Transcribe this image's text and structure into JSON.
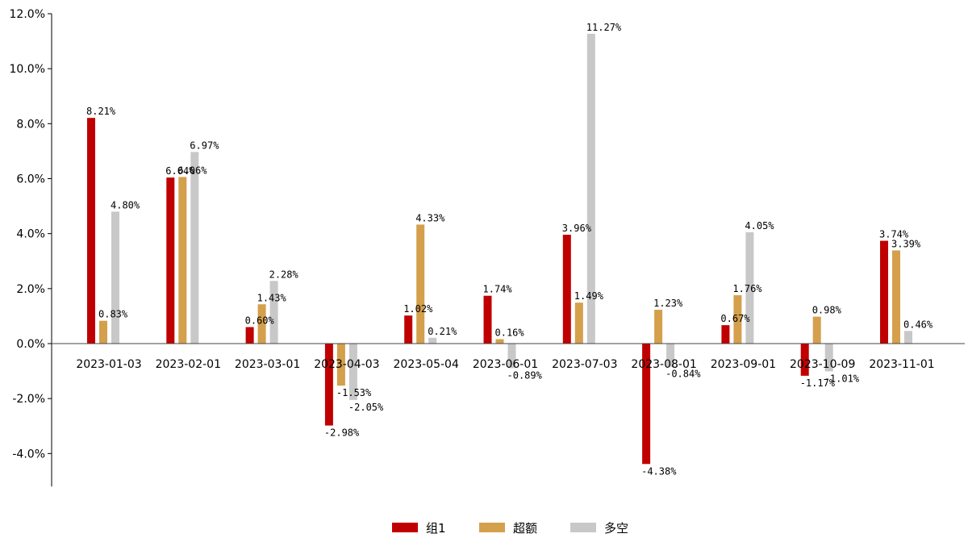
{
  "chart_data": {
    "type": "bar",
    "categories": [
      "2023-01-03",
      "2023-02-01",
      "2023-03-01",
      "2023-04-03",
      "2023-05-04",
      "2023-06-01",
      "2023-07-03",
      "2023-08-01",
      "2023-09-01",
      "2023-10-09",
      "2023-11-01"
    ],
    "series": [
      {
        "name": "组1",
        "color": "#c00000",
        "values": [
          8.21,
          6.04,
          0.6,
          -2.98,
          1.02,
          1.74,
          3.96,
          -4.38,
          0.67,
          -1.17,
          3.74
        ],
        "labels": [
          "8.21%",
          "6.04%",
          "0.60%",
          "-2.98%",
          "1.02%",
          "1.74%",
          "3.96%",
          "-4.38%",
          "0.67%",
          "-1.17%",
          "3.74%"
        ]
      },
      {
        "name": "超额",
        "color": "#d4a04c",
        "values": [
          0.83,
          6.06,
          1.43,
          -1.53,
          4.33,
          0.16,
          1.49,
          1.23,
          1.76,
          0.98,
          3.39
        ],
        "labels": [
          "0.83%",
          "6.06%",
          "1.43%",
          "-1.53%",
          "4.33%",
          "0.16%",
          "1.49%",
          "1.23%",
          "1.76%",
          "0.98%",
          "3.39%"
        ]
      },
      {
        "name": "多空",
        "color": "#c8c8c8",
        "values": [
          4.8,
          6.97,
          2.28,
          -2.05,
          0.21,
          -0.89,
          11.27,
          -0.84,
          4.05,
          -1.01,
          0.46
        ],
        "labels": [
          "4.80%",
          "6.97%",
          "2.28%",
          "-2.05%",
          "0.21%",
          "-0.89%",
          "11.27%",
          "-0.84%",
          "4.05%",
          "-1.01%",
          "0.46%"
        ]
      }
    ],
    "yticks": [
      -4,
      -2,
      0,
      2,
      4,
      6,
      8,
      10,
      12
    ],
    "ytick_labels": [
      "-4.0%",
      "-2.0%",
      "0.0%",
      "2.0%",
      "4.0%",
      "6.0%",
      "8.0%",
      "10.0%",
      "12.0%"
    ],
    "ylim": [
      -5.2,
      12.0
    ],
    "legend_position": "bottom-center",
    "grid": false
  }
}
